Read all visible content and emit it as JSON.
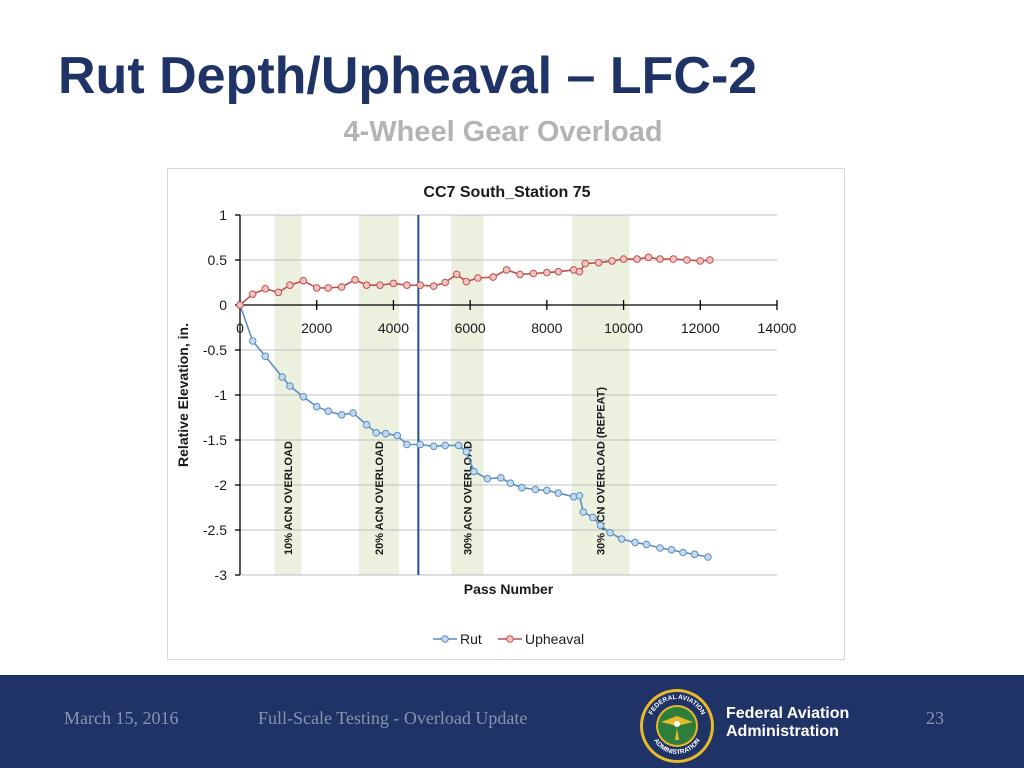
{
  "slide": {
    "title": "Rut Depth/Upheaval – LFC-2",
    "subtitle": "4-Wheel Gear Overload"
  },
  "footer": {
    "date": "March 15, 2016",
    "center_text": "Full-Scale Testing - Overload Update",
    "org_line1": "Federal Aviation",
    "org_line2": "Administration",
    "page_number": "23",
    "logo_icon": "faa-seal-icon",
    "logo_text_top": "FEDERAL AVIATION",
    "logo_text_bottom": "ADMINISTRATION"
  },
  "colors": {
    "title": "#1f3366",
    "subtitle": "#b3b3b3",
    "footer_bg": "#1f3366",
    "rut_line": "#5b8ec4",
    "rut_marker_fill": "#c5d9ee",
    "upheaval_line": "#c0504d",
    "upheaval_marker_fill": "#f2c4c4",
    "overload_band": "#ebf1de",
    "vertical_marker": "#1f4e9e"
  },
  "chart_data": {
    "type": "line",
    "title": "CC7 South_Station 75",
    "xlabel": "Pass Number",
    "ylabel": "Relative Elevation, in.",
    "xlim": [
      0,
      14000
    ],
    "ylim": [
      -3,
      1
    ],
    "x_ticks": [
      "0",
      "2000",
      "4000",
      "6000",
      "8000",
      "10000",
      "12000",
      "14000"
    ],
    "y_ticks": [
      "1",
      "0.5",
      "0",
      "-0.5",
      "-1",
      "-1.5",
      "-2",
      "-2.5",
      "-3"
    ],
    "grid": true,
    "legend_position": "bottom",
    "overload_bands": [
      {
        "label": "10% ACN OVERLOAD",
        "x_start": 900,
        "x_end": 1600
      },
      {
        "label": "20% ACN OVERLOAD",
        "x_start": 3100,
        "x_end": 4150
      },
      {
        "label": "30% ACN OVERLOAD",
        "x_start": 5500,
        "x_end": 6350
      },
      {
        "label": "30% ACN OVERLOAD (REPEAT)",
        "x_start": 8650,
        "x_end": 10150
      }
    ],
    "vertical_line_x": 4650,
    "series": [
      {
        "name": "Rut",
        "x": [
          0,
          330,
          660,
          1100,
          1300,
          1650,
          2000,
          2300,
          2650,
          2950,
          3300,
          3550,
          3800,
          4100,
          4350,
          4700,
          5050,
          5350,
          5700,
          5900,
          6100,
          6450,
          6800,
          7050,
          7350,
          7700,
          8000,
          8300,
          8700,
          8850,
          8950,
          9200,
          9400,
          9650,
          9950,
          10300,
          10600,
          10950,
          11250,
          11550,
          11850,
          12200
        ],
        "values": [
          0,
          -0.4,
          -0.57,
          -0.8,
          -0.9,
          -1.02,
          -1.13,
          -1.18,
          -1.22,
          -1.2,
          -1.33,
          -1.42,
          -1.43,
          -1.45,
          -1.55,
          -1.55,
          -1.57,
          -1.56,
          -1.56,
          -1.63,
          -1.85,
          -1.93,
          -1.92,
          -1.98,
          -2.03,
          -2.05,
          -2.06,
          -2.09,
          -2.13,
          -2.12,
          -2.3,
          -2.36,
          -2.45,
          -2.53,
          -2.6,
          -2.64,
          -2.66,
          -2.7,
          -2.72,
          -2.75,
          -2.77,
          -2.8
        ]
      },
      {
        "name": "Upheaval",
        "x": [
          0,
          330,
          660,
          1000,
          1300,
          1650,
          2000,
          2300,
          2650,
          3000,
          3300,
          3650,
          4000,
          4350,
          4700,
          5050,
          5350,
          5650,
          5900,
          6200,
          6600,
          6950,
          7300,
          7650,
          8000,
          8300,
          8700,
          8850,
          9000,
          9350,
          9700,
          10000,
          10350,
          10650,
          10950,
          11300,
          11650,
          12000,
          12250
        ],
        "values": [
          0,
          0.12,
          0.18,
          0.14,
          0.22,
          0.27,
          0.19,
          0.19,
          0.2,
          0.28,
          0.22,
          0.22,
          0.24,
          0.22,
          0.22,
          0.21,
          0.25,
          0.34,
          0.26,
          0.3,
          0.31,
          0.39,
          0.34,
          0.35,
          0.36,
          0.37,
          0.39,
          0.37,
          0.46,
          0.47,
          0.49,
          0.51,
          0.51,
          0.53,
          0.51,
          0.51,
          0.5,
          0.49,
          0.5
        ]
      }
    ]
  }
}
